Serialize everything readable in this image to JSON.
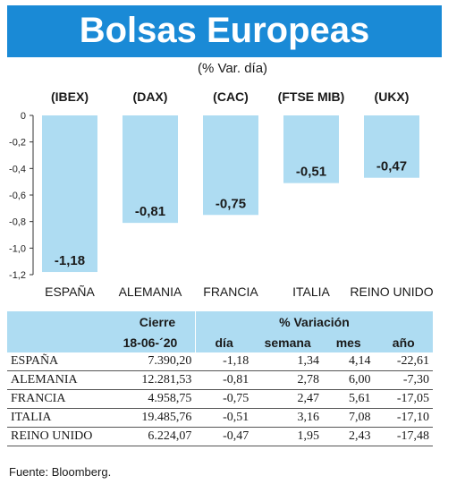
{
  "header": {
    "title": "Bolsas Europeas",
    "subtitle": "(% Var. día)"
  },
  "chart_data": {
    "type": "bar",
    "index_labels": [
      "(IBEX)",
      "(DAX)",
      "(CAC)",
      "(FTSE MIB)",
      "(UKX)"
    ],
    "categories": [
      "ESPAÑA",
      "ALEMANIA",
      "FRANCIA",
      "ITALIA",
      "REINO UNIDO"
    ],
    "values": [
      -1.18,
      -0.81,
      -0.75,
      -0.51,
      -0.47
    ],
    "value_labels": [
      "-1,18",
      "-0,81",
      "-0,75",
      "-0,51",
      "-0,47"
    ],
    "ylim": [
      -1.2,
      0
    ],
    "yticks": [
      0,
      -0.2,
      -0.4,
      -0.6,
      -0.8,
      -1.0,
      -1.2
    ],
    "ytick_labels": [
      "0",
      "-0,2",
      "-0,4",
      "-0,6",
      "-0,8",
      "-1,0",
      "-1,2"
    ],
    "grid": false,
    "bar_color": "#aedcf2"
  },
  "table": {
    "group_headers": {
      "cierre": "Cierre",
      "variacion": "% Variación"
    },
    "column_headers": {
      "date": "18-06-´20",
      "dia": "día",
      "semana": "semana",
      "mes": "mes",
      "anio": "año"
    },
    "rows": [
      {
        "pais": "ESPAÑA",
        "cierre": "7.390,20",
        "dia": "-1,18",
        "semana": "1,34",
        "mes": "4,14",
        "anio": "-22,61"
      },
      {
        "pais": "ALEMANIA",
        "cierre": "12.281,53",
        "dia": "-0,81",
        "semana": "2,78",
        "mes": "6,00",
        "anio": "-7,30"
      },
      {
        "pais": "FRANCIA",
        "cierre": "4.958,75",
        "dia": "-0,75",
        "semana": "2,47",
        "mes": "5,61",
        "anio": "-17,05"
      },
      {
        "pais": "ITALIA",
        "cierre": "19.485,76",
        "dia": "-0,51",
        "semana": "3,16",
        "mes": "7,08",
        "anio": "-17,10"
      },
      {
        "pais": "REINO UNIDO",
        "cierre": "6.224,07",
        "dia": "-0,47",
        "semana": "1,95",
        "mes": "2,43",
        "anio": "-17,48"
      }
    ]
  },
  "source": "Fuente: Bloomberg.",
  "colors": {
    "banner": "#1a8ad6",
    "light_blue": "#aedcf2"
  }
}
